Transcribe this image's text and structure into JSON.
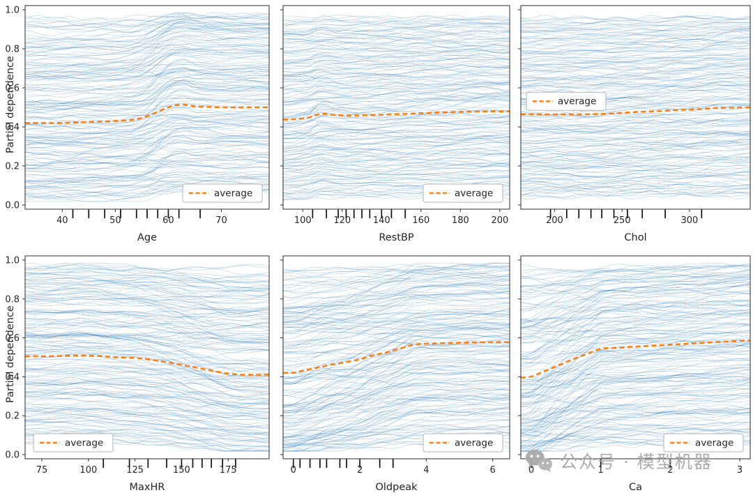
{
  "figure": {
    "ylabel": "Partial dependence",
    "background": "#ffffff",
    "yticks": [
      0,
      0.2,
      0.4,
      0.6,
      0.8,
      1.0
    ],
    "legend_label": "average",
    "colors": {
      "ice_line": "#2878b5",
      "average_line": "#ff7f0e",
      "axis_text": "#262626",
      "spine": "#2b2b2b",
      "rug": "#111111",
      "legend_border": "#b3b3b3",
      "watermark": "#a8a8a8"
    }
  },
  "watermark": {
    "text": "公众号 · 模型机器"
  },
  "chart_data": [
    {
      "type": "line",
      "subtype": "ice-partial-dependence",
      "feature": "Age",
      "xlabel": "Age",
      "ylabel": "Partial dependence",
      "xlim": [
        33,
        79
      ],
      "ylim": [
        0,
        1
      ],
      "xticks": [
        40,
        50,
        60,
        70
      ],
      "legend": {
        "label": "average",
        "position": "lower right"
      },
      "average_series": {
        "x": [
          33,
          40,
          45,
          50,
          53,
          55,
          57,
          59,
          61,
          63,
          65,
          70,
          79
        ],
        "y": [
          0.42,
          0.42,
          0.425,
          0.43,
          0.435,
          0.445,
          0.465,
          0.49,
          0.51,
          0.515,
          0.505,
          0.5,
          0.5
        ]
      },
      "deciles_x": [
        42,
        45,
        48,
        51,
        54,
        56,
        58,
        60,
        62,
        66
      ],
      "ice_lines": {
        "count": 170,
        "description": "light blue individual conditional expectation curves spanning y 0.04-0.97"
      }
    },
    {
      "type": "line",
      "subtype": "ice-partial-dependence",
      "feature": "RestBP",
      "xlabel": "RestBP",
      "ylabel": "Partial dependence",
      "xlim": [
        90,
        205
      ],
      "ylim": [
        0,
        1
      ],
      "xticks": [
        100,
        120,
        140,
        160,
        180,
        200
      ],
      "legend": {
        "label": "average",
        "position": "lower right"
      },
      "average_series": {
        "x": [
          90,
          97,
          103,
          107,
          110,
          113,
          117,
          122,
          130,
          140,
          150,
          160,
          170,
          180,
          190,
          205
        ],
        "y": [
          0.437,
          0.44,
          0.447,
          0.462,
          0.468,
          0.465,
          0.46,
          0.458,
          0.459,
          0.462,
          0.466,
          0.47,
          0.474,
          0.477,
          0.479,
          0.48
        ]
      },
      "deciles_x": [
        105,
        112,
        118,
        122,
        126,
        130,
        134,
        140,
        145,
        152
      ],
      "ice_lines": {
        "count": 170,
        "description": "light blue individual conditional expectation curves spanning y 0.04-0.97"
      }
    },
    {
      "type": "line",
      "subtype": "ice-partial-dependence",
      "feature": "Chol",
      "xlabel": "Chol",
      "ylabel": "Partial dependence",
      "xlim": [
        175,
        345
      ],
      "ylim": [
        0,
        1
      ],
      "xticks": [
        200,
        250,
        300
      ],
      "legend": {
        "label": "average",
        "position": "center left"
      },
      "average_series": {
        "x": [
          175,
          195,
          215,
          235,
          250,
          262,
          275,
          290,
          305,
          320,
          345
        ],
        "y": [
          0.465,
          0.464,
          0.464,
          0.466,
          0.472,
          0.477,
          0.48,
          0.486,
          0.49,
          0.497,
          0.5
        ]
      },
      "deciles_x": [
        197,
        209,
        218,
        227,
        235,
        244,
        254,
        265,
        282,
        309
      ],
      "ice_lines": {
        "count": 170,
        "description": "light blue individual conditional expectation curves spanning y 0.04-0.97"
      }
    },
    {
      "type": "line",
      "subtype": "ice-partial-dependence",
      "feature": "MaxHR",
      "xlabel": "MaxHR",
      "ylabel": "Partial dependence",
      "xlim": [
        66,
        197
      ],
      "ylim": [
        0,
        1
      ],
      "xticks": [
        75,
        100,
        125,
        150,
        175
      ],
      "legend": {
        "label": "average",
        "position": "lower left"
      },
      "average_series": {
        "x": [
          66,
          75,
          85,
          95,
          105,
          115,
          125,
          132,
          140,
          148,
          155,
          162,
          168,
          175,
          182,
          197
        ],
        "y": [
          0.505,
          0.505,
          0.507,
          0.51,
          0.507,
          0.5,
          0.497,
          0.49,
          0.478,
          0.465,
          0.452,
          0.44,
          0.428,
          0.416,
          0.411,
          0.41
        ]
      },
      "deciles_x": [
        108,
        122,
        132,
        142,
        150,
        156,
        161,
        166,
        172,
        179
      ],
      "ice_lines": {
        "count": 170,
        "description": "light blue individual conditional expectation curves spanning y 0.04-0.97"
      }
    },
    {
      "type": "line",
      "subtype": "ice-partial-dependence",
      "feature": "Oldpeak",
      "xlabel": "Oldpeak",
      "ylabel": "Partial dependence",
      "xlim": [
        -0.31,
        6.51
      ],
      "ylim": [
        0,
        1
      ],
      "xticks": [
        0,
        2,
        4,
        6
      ],
      "legend": {
        "label": "average",
        "position": "lower right"
      },
      "average_series": {
        "x": [
          -0.31,
          0,
          0.4,
          0.8,
          1.2,
          1.6,
          2.0,
          2.4,
          2.8,
          3.2,
          3.6,
          4,
          5,
          6,
          6.51
        ],
        "y": [
          0.42,
          0.42,
          0.435,
          0.45,
          0.465,
          0.475,
          0.49,
          0.51,
          0.525,
          0.545,
          0.565,
          0.57,
          0.575,
          0.578,
          0.578
        ]
      },
      "deciles_x": [
        0,
        0.2,
        0.5,
        0.8,
        1.0,
        1.4,
        1.6,
        2.0,
        2.6,
        3.0
      ],
      "ice_lines": {
        "count": 170,
        "description": "light blue individual conditional expectation curves spanning y 0.04-0.97"
      }
    },
    {
      "type": "line",
      "subtype": "ice-partial-dependence",
      "feature": "Ca",
      "xlabel": "Ca",
      "ylabel": "Partial dependence",
      "xlim": [
        -0.15,
        3.15
      ],
      "ylim": [
        0,
        1
      ],
      "xticks": [
        0,
        1,
        2,
        3
      ],
      "legend": {
        "label": "average",
        "position": "lower right"
      },
      "average_series": {
        "x": [
          -0.15,
          0,
          0.3,
          0.6,
          1.0,
          1.5,
          2.0,
          2.5,
          3.0,
          3.15
        ],
        "y": [
          0.395,
          0.4,
          0.445,
          0.49,
          0.545,
          0.555,
          0.565,
          0.575,
          0.585,
          0.587
        ]
      },
      "deciles_x": [
        0,
        1,
        2
      ],
      "ice_lines": {
        "count": 170,
        "description": "light blue individual conditional expectation curves, strong upward fan from 0 to 1"
      }
    }
  ]
}
